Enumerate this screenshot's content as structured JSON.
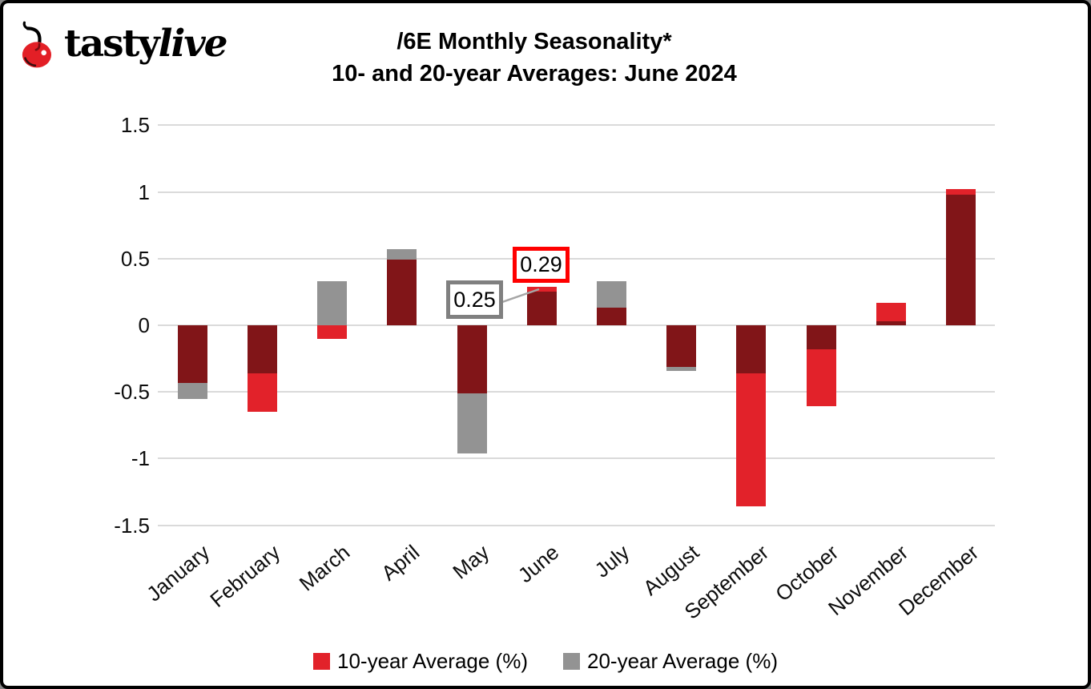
{
  "logo": {
    "brand_part1": "tasty",
    "brand_part2": "live",
    "cherry_color": "#E31F26"
  },
  "title": {
    "line1": "/6E Monthly Seasonality*",
    "line2": "10- and 20-year Averages: June 2024"
  },
  "chart_data": {
    "type": "bar",
    "categories": [
      "January",
      "February",
      "March",
      "April",
      "May",
      "June",
      "July",
      "August",
      "September",
      "October",
      "November",
      "December"
    ],
    "series": [
      {
        "name": "10-year Average (%)",
        "color": "#E2222A",
        "values": [
          -0.43,
          -0.65,
          -0.1,
          0.49,
          -0.51,
          0.29,
          0.13,
          -0.31,
          -1.36,
          -0.61,
          0.17,
          1.02
        ]
      },
      {
        "name": "20-year Average (%)",
        "color": "#939393",
        "values": [
          -0.55,
          -0.36,
          0.33,
          0.57,
          -0.96,
          0.25,
          0.33,
          -0.34,
          -0.36,
          -0.18,
          0.03,
          0.98
        ]
      }
    ],
    "overlap_color": "#811518",
    "gridline_color": "#DADADA",
    "grid": true,
    "ylim": [
      -1.5,
      1.5
    ],
    "y_ticks": [
      1.5,
      1,
      0.5,
      0,
      -0.5,
      -1,
      -1.5
    ],
    "y_tick_labels": [
      "1.5",
      "1",
      "0.5",
      "0",
      "-0.5",
      "-1",
      "-1.5"
    ],
    "legend_position": "bottom",
    "annotations": [
      {
        "month": "June",
        "series": "10-year Average (%)",
        "label": "0.29",
        "border_color": "#FF0000"
      },
      {
        "month": "June",
        "series": "20-year Average (%)",
        "label": "0.25",
        "border_color": "#808080",
        "leader_color": "#A6A6A6"
      }
    ]
  },
  "legend": {
    "items": [
      {
        "label": "10-year Average (%)",
        "color": "#E2222A"
      },
      {
        "label": "20-year Average (%)",
        "color": "#939393"
      }
    ]
  }
}
